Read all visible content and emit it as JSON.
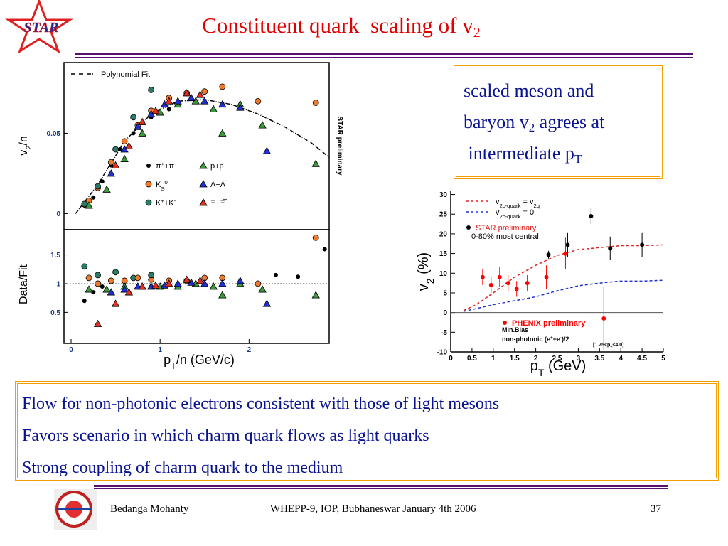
{
  "logo": "STAR",
  "title": [
    "Constituent quark  scaling of v",
    {
      "sub": "2"
    }
  ],
  "callout": [
    "scaled meson and",
    [
      "baryon v",
      {
        "sub": "2"
      },
      " agrees at"
    ],
    [
      " intermediate p",
      {
        "sub": "T"
      }
    ]
  ],
  "bullets": [
    "Flow for non-photonic electrons consistent with those of light mesons",
    "Favors scenario in which charm quark flows as light quarks",
    "Strong coupling of charm quark to the medium"
  ],
  "footer": {
    "author": "Bedanga Mohanty",
    "event": "WHEPP-9, IOP, Bubhaneswar January 4th 2006",
    "page": "37"
  },
  "chart_data": [
    {
      "type": "scatter",
      "y_label": [
        "v",
        {
          "sub": "2"
        },
        "/n"
      ],
      "annotation": "STAR preliminary",
      "xlim": [
        -0.08,
        2.9
      ],
      "ylim": [
        -0.01,
        0.094
      ],
      "yticks": [
        0,
        0.05
      ],
      "series": [
        {
          "name": "Polynomial Fit",
          "type": "line",
          "color": "#000000",
          "x": [
            0.05,
            0.3,
            0.6,
            0.9,
            1.2,
            1.5,
            1.8,
            2.1,
            2.4,
            2.7,
            2.9
          ],
          "values": [
            0,
            0.018,
            0.045,
            0.062,
            0.07,
            0.071,
            0.068,
            0.062,
            0.054,
            0.044,
            0.035
          ]
        },
        {
          "name": [
            "π",
            {
              "sup": "+"
            },
            "+π",
            {
              "sup": "-"
            }
          ],
          "marker": "dot",
          "color": "#000000",
          "x": [
            0.15,
            0.25,
            0.35,
            0.45,
            0.55,
            0.7,
            0.9,
            1.1
          ],
          "values": [
            0.005,
            0.01,
            0.02,
            0.03,
            0.04,
            0.05,
            0.06,
            0.065
          ]
        },
        {
          "name": [
            "K",
            {
              "sub": "S"
            },
            {
              "sup": "0"
            }
          ],
          "marker": "circle",
          "color": "#f07a2a",
          "x": [
            0.2,
            0.3,
            0.45,
            0.6,
            0.75,
            0.9,
            1.1,
            1.3,
            1.5,
            1.7,
            2.1,
            2.75
          ],
          "values": [
            0.008,
            0.016,
            0.032,
            0.045,
            0.055,
            0.064,
            0.072,
            0.075,
            0.076,
            0.079,
            0.07,
            0.069
          ]
        },
        {
          "name": [
            "K",
            {
              "sup": "+"
            },
            "+K",
            {
              "sup": "-"
            }
          ],
          "marker": "circle",
          "color": "#2a7a66",
          "x": [
            0.15,
            0.3,
            0.5,
            0.7,
            0.9
          ],
          "values": [
            0.006,
            0.017,
            0.04,
            0.06,
            0.077
          ]
        },
        {
          "name": "p+p̅",
          "marker": "triangle",
          "color": "#3a9a3a",
          "x": [
            0.2,
            0.4,
            0.6,
            0.8,
            1.0,
            1.2,
            1.4,
            1.6,
            1.7,
            1.9,
            2.15,
            2.75
          ],
          "values": [
            0.005,
            0.015,
            0.034,
            0.05,
            0.063,
            0.068,
            0.07,
            0.065,
            0.05,
            0.068,
            0.055,
            0.031
          ]
        },
        {
          "name": "Λ+Λ̅",
          "marker": "triangle",
          "color": "#2030d0",
          "x": [
            0.45,
            0.6,
            0.75,
            0.9,
            1.05,
            1.2,
            1.35,
            1.5,
            1.7,
            1.9,
            2.2
          ],
          "values": [
            0.025,
            0.04,
            0.054,
            0.062,
            0.068,
            0.07,
            0.072,
            0.07,
            0.068,
            0.066,
            0.039
          ]
        },
        {
          "name": "Ξ+Ξ̅",
          "marker": "triangle",
          "color": "#e03020",
          "x": [
            0.5,
            0.65,
            0.8,
            0.95,
            1.1,
            1.3,
            1.45
          ],
          "values": [
            0.03,
            0.042,
            0.057,
            0.064,
            0.07,
            0.075,
            0.074
          ]
        }
      ]
    },
    {
      "type": "scatter",
      "y_label": "Data/Fit",
      "x_label": [
        "p",
        {
          "sub": "T"
        },
        "/n (GeV/c)"
      ],
      "xlim": [
        -0.08,
        2.9
      ],
      "ylim": [
        -0.04,
        1.94
      ],
      "xticks": [
        0,
        1,
        2
      ],
      "yticks": [
        0.5,
        1,
        1.5
      ],
      "hline": 1,
      "series": [
        {
          "marker": "dot",
          "color": "#000000",
          "x": [
            0.15,
            0.25,
            0.35,
            1.9,
            2.3,
            2.55,
            2.85
          ],
          "values": [
            0.7,
            0.85,
            0.95,
            1.0,
            1.15,
            1.12,
            1.6
          ]
        },
        {
          "marker": "circle",
          "color": "#f07a2a",
          "x": [
            0.2,
            0.3,
            0.45,
            0.6,
            0.75,
            0.9,
            1.1,
            1.3,
            1.5,
            1.7,
            2.1,
            2.75
          ],
          "values": [
            1.1,
            1.0,
            1.05,
            1.05,
            1.1,
            1.07,
            1.05,
            1.05,
            1.1,
            1.1,
            1.0,
            1.8
          ]
        },
        {
          "marker": "circle",
          "color": "#2a7a66",
          "x": [
            0.15,
            0.3,
            0.5,
            0.7,
            0.9
          ],
          "values": [
            1.3,
            1.15,
            1.2,
            1.1,
            1.15
          ]
        },
        {
          "marker": "triangle",
          "color": "#3a9a3a",
          "x": [
            0.2,
            0.4,
            0.6,
            0.8,
            1.0,
            1.2,
            1.4,
            1.6,
            1.7,
            1.9,
            2.15,
            2.75
          ],
          "values": [
            0.9,
            0.9,
            0.95,
            0.95,
            0.95,
            0.95,
            1.0,
            0.95,
            0.8,
            1.0,
            0.9,
            0.8
          ]
        },
        {
          "marker": "triangle",
          "color": "#2030d0",
          "x": [
            0.45,
            0.6,
            0.75,
            0.9,
            1.05,
            1.2,
            1.35,
            1.5,
            1.7,
            1.9,
            2.2
          ],
          "values": [
            0.85,
            0.9,
            0.95,
            0.95,
            0.97,
            1.0,
            1.02,
            1.0,
            1.0,
            1.05,
            0.65
          ]
        },
        {
          "marker": "triangle",
          "color": "#e03020",
          "x": [
            0.3,
            0.5,
            0.65,
            0.8,
            0.95,
            1.1,
            1.3,
            1.45
          ],
          "values": [
            0.3,
            0.65,
            0.85,
            0.95,
            0.97,
            1.0,
            1.07,
            1.05
          ]
        }
      ]
    },
    {
      "type": "scatter",
      "x_label": [
        "p",
        {
          "sub": "T"
        },
        " (GeV)"
      ],
      "y_label": [
        "v",
        {
          "sub": "2"
        },
        " (%)"
      ],
      "xlim": [
        0,
        5
      ],
      "ylim": [
        -10,
        31
      ],
      "xticks": [
        0,
        0.5,
        1,
        1.5,
        2,
        2.5,
        3,
        3.5,
        4,
        4.5,
        5
      ],
      "yticks": [
        -10,
        -5,
        0,
        5,
        10,
        15,
        20,
        25,
        30
      ],
      "hline": 0,
      "annotations": [
        "0-80% most central",
        "Min.Bias",
        [
          "non-photonic (e",
          {
            "sup": "+"
          },
          "+e",
          {
            "sup": "-"
          },
          ")/2"
        ],
        [
          "[1.75<p",
          {
            "sub": "T"
          },
          "<4.0]"
        ]
      ],
      "series": [
        {
          "name": [
            "v",
            {
              "sub": "2c-quark"
            },
            " = v",
            {
              "sub": "2q"
            }
          ],
          "type": "line",
          "color": "#e02020",
          "x": [
            0.3,
            0.6,
            1,
            1.5,
            2,
            2.5,
            3,
            3.5,
            4,
            4.5,
            5
          ],
          "values": [
            0.5,
            2,
            5,
            9,
            12,
            14.5,
            16,
            16.5,
            17,
            17,
            17.2
          ]
        },
        {
          "name": [
            "v",
            {
              "sub": "2c-quark"
            },
            " = 0"
          ],
          "type": "line",
          "color": "#2030d0",
          "x": [
            0.3,
            0.6,
            1,
            1.5,
            2,
            2.5,
            3,
            3.5,
            4,
            4.5,
            5
          ],
          "values": [
            0.3,
            1,
            2,
            3,
            4,
            5.5,
            6.8,
            7.5,
            8,
            8,
            8.2
          ]
        },
        {
          "name": "STAR preliminary",
          "marker": "dot",
          "color": "#000000",
          "x": [
            2.3,
            2.75,
            3.3,
            3.75,
            4.5
          ],
          "values": [
            14.7,
            17.2,
            24.5,
            16.3,
            17.2
          ],
          "errors": [
            1,
            3,
            2,
            3,
            3
          ]
        },
        {
          "name": "PHENIX preliminary",
          "marker": "dot",
          "color": "#ff0000",
          "x": [
            0.75,
            0.95,
            1.15,
            1.35,
            1.55,
            1.8,
            2.25,
            2.7,
            3.6
          ],
          "values": [
            9,
            7,
            9,
            7.5,
            6,
            7.5,
            9,
            15,
            -1.5
          ],
          "errors": [
            2,
            2,
            2.5,
            2,
            2,
            2,
            3,
            4,
            8
          ]
        }
      ]
    }
  ]
}
